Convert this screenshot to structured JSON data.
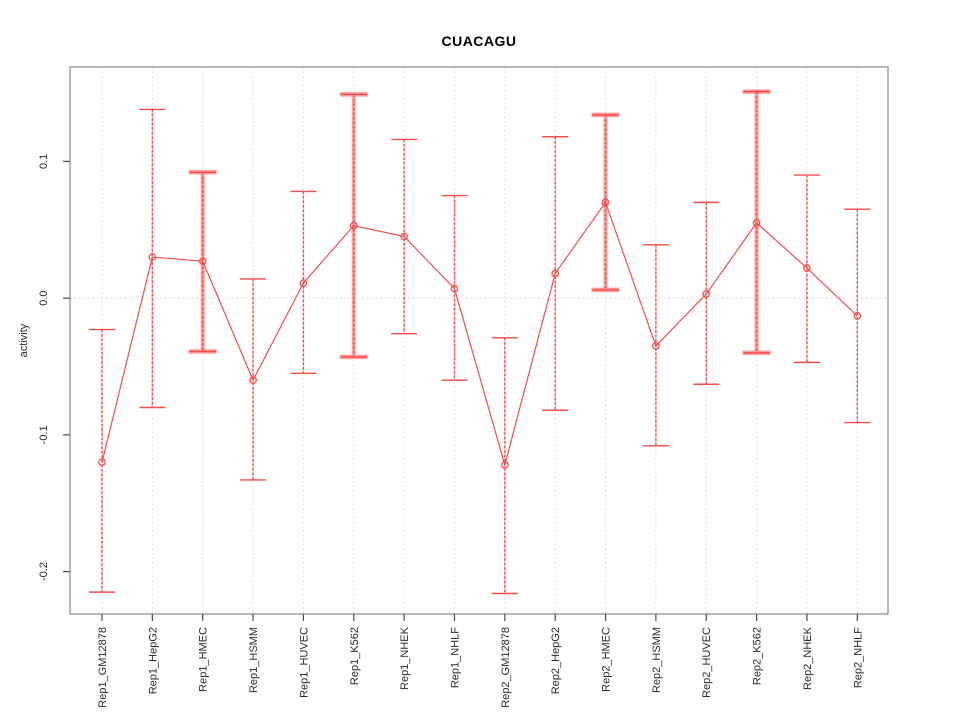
{
  "chart_data": {
    "type": "line",
    "title": "CUACAGU",
    "xlabel": "",
    "ylabel": "activity",
    "categories": [
      "Rep1_GM12878",
      "Rep1_HepG2",
      "Rep1_HMEC",
      "Rep1_HSMM",
      "Rep1_HUVEC",
      "Rep1_K562",
      "Rep1_NHEK",
      "Rep1_NHLF",
      "Rep2_GM12878",
      "Rep2_HepG2",
      "Rep2_HMEC",
      "Rep2_HSMM",
      "Rep2_HUVEC",
      "Rep2_K562",
      "Rep2_NHEK",
      "Rep2_NHLF"
    ],
    "series": [
      {
        "name": "mean_activity",
        "values": [
          -0.12,
          0.03,
          0.027,
          -0.06,
          0.011,
          0.053,
          0.045,
          0.007,
          -0.122,
          0.018,
          0.07,
          -0.035,
          0.003,
          0.055,
          0.022,
          -0.013
        ]
      },
      {
        "name": "errorbar_upper",
        "values": [
          -0.023,
          0.138,
          0.092,
          0.014,
          0.078,
          0.149,
          0.116,
          0.075,
          -0.029,
          0.118,
          0.134,
          0.039,
          0.07,
          0.151,
          0.09,
          0.065
        ]
      },
      {
        "name": "errorbar_lower",
        "values": [
          -0.215,
          -0.08,
          -0.039,
          -0.133,
          -0.055,
          -0.043,
          -0.026,
          -0.06,
          -0.216,
          -0.082,
          0.006,
          -0.108,
          -0.063,
          -0.04,
          -0.047,
          -0.091
        ]
      }
    ],
    "thick_errorbar_categories": [
      "Rep1_HMEC",
      "Rep1_K562",
      "Rep2_HMEC",
      "Rep2_K562"
    ],
    "ylim": [
      -0.231,
      0.169
    ],
    "yticks": [
      0.1,
      0.0,
      -0.1,
      -0.2
    ],
    "ytick_labels": [
      "0.1",
      "0.0",
      "-0.1",
      "-0.2"
    ],
    "grid": {
      "vertical": "dotted line at every category",
      "horizontal": "dotted line at y=0"
    },
    "legend": "none",
    "point_style": "open-circle",
    "colors": {
      "line": "#f74c4c",
      "bar_light": "#ffc3c3",
      "thick_bar": "#ff9d9d",
      "grid": "#d8d8d8",
      "box": "#8a8a8a",
      "tick": "#4d4d4d",
      "text": "#2b2b2b",
      "title": "#000000"
    }
  }
}
